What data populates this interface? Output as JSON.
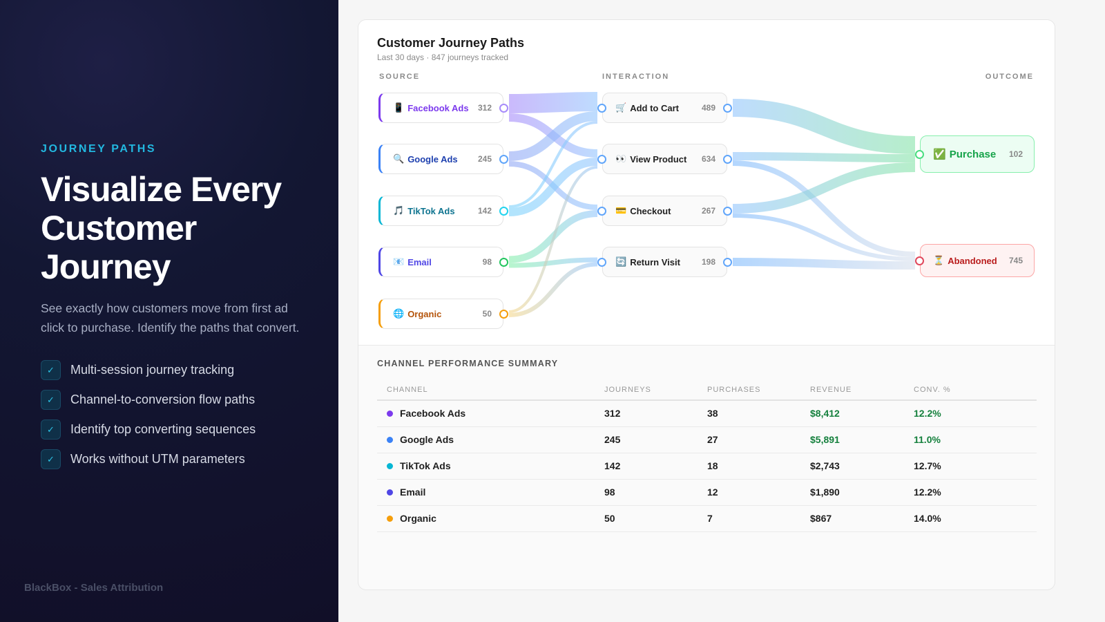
{
  "left": {
    "eyebrow": "JOURNEY PATHS",
    "headline": "Visualize Every Customer Journey",
    "description": "See exactly how customers move from first ad click to purchase. Identify the paths that convert.",
    "features": [
      "Multi-session journey tracking",
      "Channel-to-conversion flow paths",
      "Identify top converting sequences",
      "Works without UTM parameters"
    ],
    "check_icon": "✓",
    "brand": "BlackBox - Sales Attribution"
  },
  "card": {
    "title": "Customer Journey Paths",
    "subtitle": "Last 30 days · 847 journeys tracked",
    "columns": {
      "source": "SOURCE",
      "interaction": "INTERACTION",
      "outcome": "OUTCOME"
    }
  },
  "sources": [
    {
      "icon": "📱",
      "name": "Facebook Ads",
      "count": "312",
      "color": "#7c3aed"
    },
    {
      "icon": "🔍",
      "name": "Google Ads",
      "count": "245",
      "color": "#3b82f6"
    },
    {
      "icon": "🎵",
      "name": "TikTok Ads",
      "count": "142",
      "color": "#06b6d4"
    },
    {
      "icon": "📧",
      "name": "Email",
      "count": "98",
      "color": "#4f46e5"
    },
    {
      "icon": "🌐",
      "name": "Organic",
      "count": "50",
      "color": "#f59e0b"
    }
  ],
  "interactions": [
    {
      "icon": "🛒",
      "name": "Add to Cart",
      "count": "489"
    },
    {
      "icon": "👀",
      "name": "View Product",
      "count": "634"
    },
    {
      "icon": "💳",
      "name": "Checkout",
      "count": "267"
    },
    {
      "icon": "🔄",
      "name": "Return Visit",
      "count": "198"
    }
  ],
  "outcomes": [
    {
      "icon": "✅",
      "name": "Purchase",
      "count": "102",
      "color": "#16a34a"
    },
    {
      "icon": "⏳",
      "name": "Abandoned",
      "count": "745",
      "color": "#b91c1c"
    }
  ],
  "links": [
    {
      "from": "Facebook Ads",
      "to": "Add to Cart",
      "weight": 28
    },
    {
      "from": "Facebook Ads",
      "to": "View Product",
      "weight": 12
    },
    {
      "from": "Google Ads",
      "to": "Add to Cart",
      "weight": 14
    },
    {
      "from": "Google Ads",
      "to": "Checkout",
      "weight": 8
    },
    {
      "from": "TikTok Ads",
      "to": "Add to Cart",
      "weight": 4
    },
    {
      "from": "TikTok Ads",
      "to": "View Product",
      "weight": 12
    },
    {
      "from": "Email",
      "to": "Checkout",
      "weight": 10
    },
    {
      "from": "Email",
      "to": "Return Visit",
      "weight": 7
    },
    {
      "from": "Organic",
      "to": "View Product",
      "weight": 4
    },
    {
      "from": "Organic",
      "to": "Return Visit",
      "weight": 6
    },
    {
      "from": "Add to Cart",
      "to": "Purchase",
      "weight": 26
    },
    {
      "from": "View Product",
      "to": "Purchase",
      "weight": 12
    },
    {
      "from": "View Product",
      "to": "Abandoned",
      "weight": 8
    },
    {
      "from": "Checkout",
      "to": "Purchase",
      "weight": 14
    },
    {
      "from": "Checkout",
      "to": "Abandoned",
      "weight": 6
    },
    {
      "from": "Return Visit",
      "to": "Abandoned",
      "weight": 12
    }
  ],
  "summary": {
    "title": "CHANNEL PERFORMANCE SUMMARY",
    "headers": [
      "CHANNEL",
      "JOURNEYS",
      "PURCHASES",
      "REVENUE",
      "CONV. %"
    ],
    "rows": [
      {
        "channel": "Facebook Ads",
        "color": "#7c3aed",
        "journeys": "312",
        "purchases": "38",
        "revenue": "$8,412",
        "conv": "12.2%",
        "highlight": true
      },
      {
        "channel": "Google Ads",
        "color": "#3b82f6",
        "journeys": "245",
        "purchases": "27",
        "revenue": "$5,891",
        "conv": "11.0%",
        "highlight": true
      },
      {
        "channel": "TikTok Ads",
        "color": "#06b6d4",
        "journeys": "142",
        "purchases": "18",
        "revenue": "$2,743",
        "conv": "12.7%",
        "highlight": false
      },
      {
        "channel": "Email",
        "color": "#4f46e5",
        "journeys": "98",
        "purchases": "12",
        "revenue": "$1,890",
        "conv": "12.2%",
        "highlight": false
      },
      {
        "channel": "Organic",
        "color": "#f59e0b",
        "journeys": "50",
        "purchases": "7",
        "revenue": "$867",
        "conv": "14.0%",
        "highlight": false
      }
    ]
  }
}
